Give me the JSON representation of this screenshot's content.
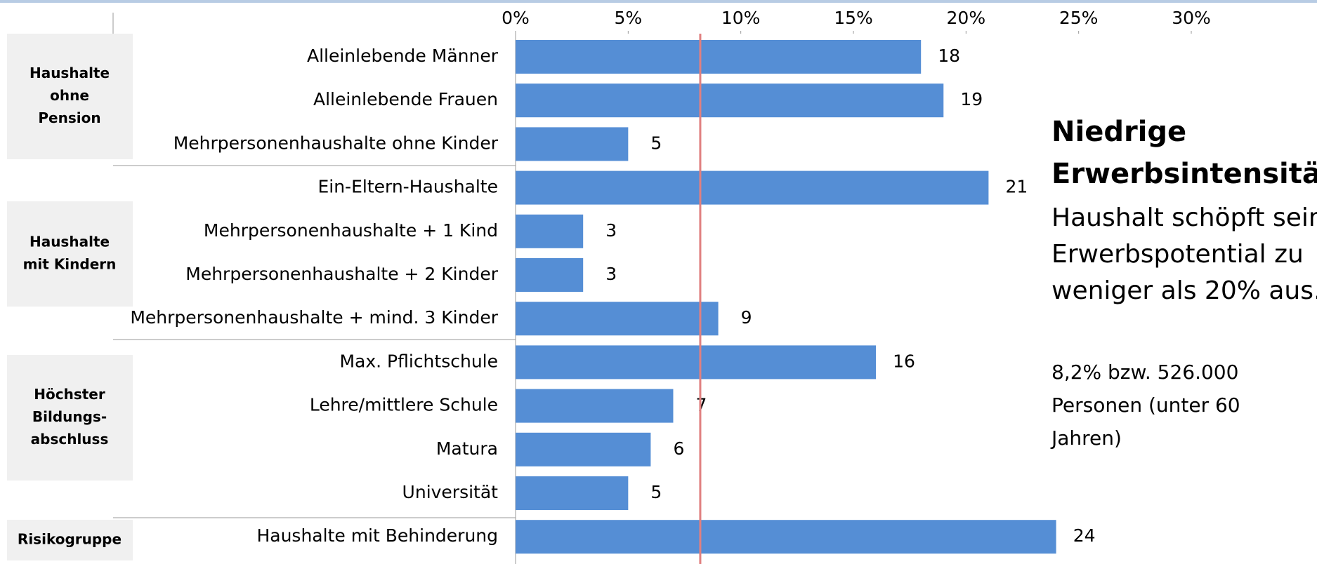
{
  "chart_data": {
    "type": "hbar",
    "categories": [
      "Alleinlebende Männer",
      "Alleinlebende Frauen",
      "Mehrpersonenhaushalte ohne Kinder",
      "Ein-Eltern-Haushalte",
      "Mehrpersonenhaushalte + 1 Kind",
      "Mehrpersonenhaushalte + 2 Kinder",
      "Mehrpersonenhaushalte + mind. 3 Kinder",
      "Max. Pflichtschule",
      "Lehre/mittlere Schule",
      "Matura",
      "Universität",
      "Haushalte mit Behinderung"
    ],
    "values": [
      18,
      19,
      5,
      21,
      3,
      3,
      9,
      16,
      7,
      6,
      5,
      24
    ],
    "color": "#558ed5",
    "xlim": [
      0,
      30
    ],
    "xticks": [
      {
        "value": 0,
        "label": "0%"
      },
      {
        "value": 5,
        "label": "5%"
      },
      {
        "value": 10,
        "label": "10%"
      },
      {
        "value": 15,
        "label": "15%"
      },
      {
        "value": 20,
        "label": "20%"
      },
      {
        "value": 25,
        "label": "25%"
      },
      {
        "value": 30,
        "label": "30%"
      }
    ],
    "reference_line": {
      "value": 8.2,
      "color": "#e08080"
    },
    "groups": [
      [
        "Haushalte",
        "ohne",
        "Pension"
      ],
      [
        "Haushalte",
        "mit Kindern"
      ],
      [
        "Höchster",
        "Bildungs-",
        "abschluss"
      ],
      [
        "Risikogruppe"
      ]
    ],
    "annotation": {
      "heading": [
        "Niedrige",
        "Erwerbsintensität:"
      ],
      "body": [
        "Haushalt schöpft sein",
        "Erwerbspotential zu",
        "weniger als 20% aus."
      ],
      "note": [
        "8,2% bzw. 526.000",
        "Personen (unter 60",
        "Jahren)"
      ]
    }
  }
}
